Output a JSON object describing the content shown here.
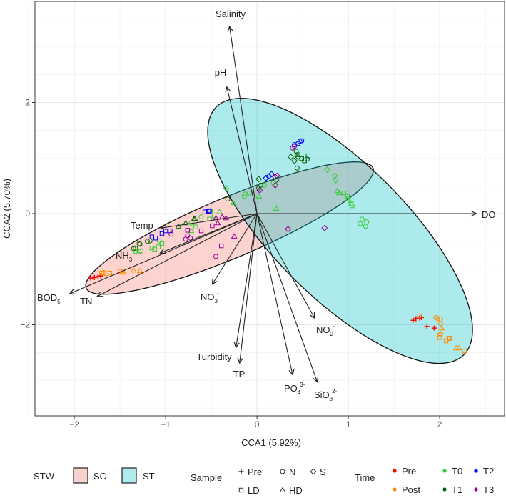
{
  "chart_data": {
    "type": "scatter",
    "title": "",
    "xlabel": "CCA1 (5.92%)",
    "ylabel": "CCA2 (5.70%)",
    "xlim": [
      -2.43,
      2.71
    ],
    "ylim": [
      -3.64,
      3.82
    ],
    "grid": true,
    "x_ticks": [
      -2,
      -1,
      0,
      1,
      2
    ],
    "y_ticks": [
      -2,
      0,
      2
    ],
    "x_tick_labels": [
      "−2",
      "−1",
      "0",
      "1",
      "2"
    ],
    "y_tick_labels": [
      "−2",
      "0",
      "2"
    ],
    "colors": {
      "Pre": "#FF0000",
      "Post": "#FF8C00",
      "T0": "#33CC33",
      "T1": "#006400",
      "T2": "#0000FF",
      "T3": "#990099"
    },
    "ellipses": [
      {
        "group": "SC",
        "fill": "#F8766D",
        "center": [
          -0.3,
          -0.26
        ],
        "axis_u": [
          1.57,
          1.08
        ],
        "axis_v": [
          -0.127,
          0.5
        ]
      },
      {
        "group": "ST",
        "fill": "#00BFC4",
        "center": [
          0.91,
          -0.31
        ],
        "axis_u": [
          -1.355,
          2.23
        ],
        "axis_v": [
          0.515,
          0.847
        ]
      }
    ],
    "arrows": [
      {
        "name": "Salinity",
        "base": "Salinity",
        "sub": "",
        "sup": "",
        "x": -0.3,
        "y": 3.37
      },
      {
        "name": "pH",
        "base": "pH",
        "sub": "",
        "sup": "",
        "x": -0.33,
        "y": 2.28
      },
      {
        "name": "DO",
        "base": "DO",
        "sub": "",
        "sup": "",
        "x": 2.4,
        "y": 0.0
      },
      {
        "name": "Temp",
        "base": "Temp",
        "sub": "",
        "sup": "",
        "x": -1.05,
        "y": -0.26
      },
      {
        "name": "NH3",
        "base": "NH",
        "sub": "3",
        "sup": "",
        "x": -1.06,
        "y": -0.71
      },
      {
        "name": "BOD5",
        "base": "BOD",
        "sub": "5",
        "sup": "",
        "x": -2.05,
        "y": -1.44
      },
      {
        "name": "TN",
        "base": "TN",
        "sub": "",
        "sup": "",
        "x": -1.75,
        "y": -1.49
      },
      {
        "name": "NO3",
        "base": "NO",
        "sub": "3",
        "sup": "-",
        "x": -0.49,
        "y": -1.27
      },
      {
        "name": "NO2",
        "base": "NO",
        "sub": "2",
        "sup": "-",
        "x": 0.63,
        "y": -1.88
      },
      {
        "name": "Turbidity",
        "base": "Turbidity",
        "sub": "",
        "sup": "",
        "x": -0.23,
        "y": -2.41
      },
      {
        "name": "TP",
        "base": "TP",
        "sub": "",
        "sup": "",
        "x": -0.19,
        "y": -2.69
      },
      {
        "name": "PO4",
        "base": "PO",
        "sub": "4",
        "sup": "3-",
        "x": 0.39,
        "y": -2.9
      },
      {
        "name": "SiO3",
        "base": "SiO",
        "sub": "3",
        "sup": "2-",
        "x": 0.66,
        "y": -3.03
      }
    ],
    "points": [
      [
        -1.7,
        -1.07,
        "Post",
        "LD"
      ],
      [
        -1.65,
        -1.08,
        "Post",
        "LD"
      ],
      [
        -1.61,
        -1.07,
        "Post",
        "LD"
      ],
      [
        -1.5,
        -1.04,
        "Post",
        "LD"
      ],
      [
        -1.47,
        -1.03,
        "Post",
        "LD"
      ],
      [
        -1.68,
        -1.06,
        "Post",
        "N"
      ],
      [
        -1.46,
        -1.06,
        "Post",
        "HD"
      ],
      [
        -1.35,
        -1.02,
        "Post",
        "HD"
      ],
      [
        -1.28,
        -1.03,
        "Post",
        "HD"
      ],
      [
        -1.82,
        -1.16,
        "Pre",
        "Pre"
      ],
      [
        -1.78,
        -1.15,
        "Pre",
        "Pre"
      ],
      [
        -1.74,
        -1.13,
        "Pre",
        "Pre"
      ],
      [
        -1.71,
        -1.12,
        "Pre",
        "Pre"
      ],
      [
        -1.29,
        -0.54,
        "T1",
        "N"
      ],
      [
        -1.33,
        -0.62,
        "T1",
        "N"
      ],
      [
        -1.35,
        -0.63,
        "T1",
        "N"
      ],
      [
        -1.2,
        -0.5,
        "T1",
        "N"
      ],
      [
        -1.17,
        -0.49,
        "T1",
        "N"
      ],
      [
        -1.28,
        -0.55,
        "T1",
        "N"
      ],
      [
        -1.33,
        -0.68,
        "T0",
        "N"
      ],
      [
        -1.29,
        -0.68,
        "T0",
        "N"
      ],
      [
        -1.27,
        -0.67,
        "T0",
        "N"
      ],
      [
        -1.15,
        -0.62,
        "T0",
        "LD"
      ],
      [
        -1.12,
        -0.64,
        "T0",
        "LD"
      ],
      [
        -1.08,
        -0.6,
        "T0",
        "LD"
      ],
      [
        -1.04,
        -0.54,
        "T0",
        "LD"
      ],
      [
        -1.07,
        -0.49,
        "T0",
        "N"
      ],
      [
        -1.15,
        -0.42,
        "T2",
        "LD"
      ],
      [
        -1.11,
        -0.44,
        "T2",
        "LD"
      ],
      [
        -1.04,
        -0.36,
        "T2",
        "LD"
      ],
      [
        -1.0,
        -0.31,
        "T2",
        "LD"
      ],
      [
        -0.95,
        -0.31,
        "T2",
        "LD"
      ],
      [
        -0.94,
        -0.37,
        "T3",
        "N"
      ],
      [
        -0.86,
        -0.23,
        "T1",
        "HD"
      ],
      [
        -0.78,
        -0.17,
        "T1",
        "HD"
      ],
      [
        -0.69,
        -0.1,
        "T1",
        "HD"
      ],
      [
        -0.68,
        -0.09,
        "T1",
        "HD"
      ],
      [
        -0.61,
        -0.06,
        "T0",
        "N"
      ],
      [
        -0.72,
        -0.17,
        "T0",
        "N"
      ],
      [
        -0.72,
        -0.31,
        "T0",
        "HD"
      ],
      [
        -0.67,
        -0.24,
        "T0",
        "LD"
      ],
      [
        -0.52,
        -0.1,
        "T0",
        "LD"
      ],
      [
        -0.47,
        -0.04,
        "T0",
        "LD"
      ],
      [
        -0.51,
        0.05,
        "T0",
        "LD"
      ],
      [
        -0.57,
        0.03,
        "T2",
        "LD"
      ],
      [
        -0.53,
        0.04,
        "T2",
        "LD"
      ],
      [
        -0.52,
        0.05,
        "T2",
        "LD"
      ],
      [
        -0.41,
        0.03,
        "T0",
        "HD"
      ],
      [
        -0.26,
        0.19,
        "T0",
        "HD"
      ],
      [
        -0.76,
        -0.3,
        "T3",
        "LD"
      ],
      [
        -0.61,
        -0.31,
        "T3",
        "LD"
      ],
      [
        -0.49,
        -0.22,
        "T3",
        "LD"
      ],
      [
        -0.39,
        -0.58,
        "T3",
        "LD"
      ],
      [
        -0.76,
        -0.4,
        "T3",
        "N"
      ],
      [
        -0.78,
        -0.46,
        "T3",
        "N"
      ],
      [
        -0.73,
        -0.44,
        "T3",
        "N"
      ],
      [
        -0.45,
        -0.77,
        "T3",
        "N"
      ],
      [
        -0.43,
        -0.17,
        "T3",
        "HD"
      ],
      [
        -0.38,
        -0.06,
        "T3",
        "HD"
      ],
      [
        -0.34,
        -0.08,
        "T3",
        "HD"
      ],
      [
        -0.25,
        -0.41,
        "T3",
        "HD"
      ],
      [
        -0.45,
        -0.08,
        "T3",
        "HD"
      ],
      [
        0.49,
        1.31,
        "T2",
        "N"
      ],
      [
        0.47,
        1.3,
        "T2",
        "N"
      ],
      [
        0.45,
        1.26,
        "T2",
        "N"
      ],
      [
        0.41,
        1.24,
        "T2",
        "N"
      ],
      [
        0.39,
        1.18,
        "T3",
        "N"
      ],
      [
        0.41,
        1.21,
        "T3",
        "N"
      ],
      [
        0.43,
        1.12,
        "T1",
        "N"
      ],
      [
        0.45,
        1.06,
        "T1",
        "LD"
      ],
      [
        0.37,
        1.02,
        "T1",
        "S"
      ],
      [
        0.41,
        0.95,
        "T1",
        "S"
      ],
      [
        0.49,
        0.99,
        "T1",
        "LD"
      ],
      [
        0.52,
        0.95,
        "T1",
        "LD"
      ],
      [
        0.56,
        1.04,
        "T1",
        "LD"
      ],
      [
        0.55,
        0.98,
        "T1",
        "N"
      ],
      [
        0.44,
        0.82,
        "T1",
        "N"
      ],
      [
        0.45,
        1.02,
        "T1",
        "S"
      ],
      [
        0.77,
        0.79,
        "T0",
        "S"
      ],
      [
        0.85,
        0.68,
        "T0",
        "S"
      ],
      [
        0.86,
        0.6,
        "T0",
        "S"
      ],
      [
        0.88,
        0.41,
        "T0",
        "HD"
      ],
      [
        0.9,
        0.37,
        "T0",
        "HD"
      ],
      [
        0.95,
        0.37,
        "T0",
        "LD"
      ],
      [
        0.99,
        0.31,
        "T0",
        "LD"
      ],
      [
        1.0,
        0.26,
        "T0",
        "LD"
      ],
      [
        1.03,
        0.23,
        "T0",
        "LD"
      ],
      [
        1.03,
        0.18,
        "T0",
        "LD"
      ],
      [
        1.04,
        0.14,
        "T0",
        "LD"
      ],
      [
        1.15,
        -0.1,
        "T0",
        "N"
      ],
      [
        1.2,
        -0.15,
        "T0",
        "N"
      ],
      [
        1.13,
        -0.18,
        "T0",
        "N"
      ],
      [
        1.19,
        -0.23,
        "T0",
        "N"
      ],
      [
        0.1,
        0.64,
        "T2",
        "S"
      ],
      [
        0.13,
        0.67,
        "T2",
        "S"
      ],
      [
        0.16,
        0.71,
        "T2",
        "S"
      ],
      [
        0.22,
        0.68,
        "T3",
        "S"
      ],
      [
        0.2,
        0.66,
        "T3",
        "S"
      ],
      [
        0.2,
        0.51,
        "T3",
        "S"
      ],
      [
        0.02,
        0.62,
        "T1",
        "S"
      ],
      [
        0.21,
        0.6,
        "T1",
        "S"
      ],
      [
        0.04,
        0.51,
        "T1",
        "N"
      ],
      [
        0.02,
        0.46,
        "T1",
        "N"
      ],
      [
        0.08,
        0.51,
        "T0",
        "N"
      ],
      [
        0.18,
        0.55,
        "T0",
        "N"
      ],
      [
        -0.08,
        0.37,
        "T0",
        "N"
      ],
      [
        -0.13,
        0.35,
        "T0",
        "N"
      ],
      [
        -0.14,
        0.31,
        "T0",
        "N"
      ],
      [
        0.03,
        0.42,
        "T3",
        "S"
      ],
      [
        0.02,
        0.31,
        "T0",
        "HD"
      ],
      [
        0.21,
        0.09,
        "T0",
        "HD"
      ],
      [
        -0.34,
        0.46,
        "T0",
        "S"
      ],
      [
        -0.32,
        0.26,
        "T1",
        "N"
      ],
      [
        0.34,
        -0.28,
        "T3",
        "S"
      ],
      [
        0.74,
        -0.26,
        "T3",
        "S"
      ],
      [
        1.71,
        -1.92,
        "Pre",
        "Pre"
      ],
      [
        1.74,
        -1.89,
        "Pre",
        "Pre"
      ],
      [
        1.78,
        -1.88,
        "Pre",
        "Pre"
      ],
      [
        1.8,
        -1.87,
        "Pre",
        "Pre"
      ],
      [
        1.86,
        -2.03,
        "Pre",
        "Pre"
      ],
      [
        1.94,
        -2.06,
        "Pre",
        "Pre"
      ],
      [
        1.78,
        -1.84,
        "Post",
        "N"
      ],
      [
        1.96,
        -1.87,
        "Post",
        "N"
      ],
      [
        1.98,
        -1.89,
        "Post",
        "N"
      ],
      [
        2.01,
        -1.9,
        "Post",
        "N"
      ],
      [
        2.01,
        -1.98,
        "Post",
        "N"
      ],
      [
        2.01,
        -2.16,
        "Post",
        "N"
      ],
      [
        2.0,
        -2.18,
        "Post",
        "N"
      ],
      [
        2.02,
        -2.06,
        "Post",
        "HD"
      ],
      [
        2.0,
        -2.23,
        "Post",
        "LD"
      ],
      [
        2.07,
        -2.29,
        "Post",
        "LD"
      ],
      [
        2.1,
        -2.25,
        "Post",
        "LD"
      ],
      [
        2.11,
        -2.24,
        "Post",
        "LD"
      ],
      [
        2.27,
        -2.47,
        "Post",
        "LD"
      ],
      [
        2.18,
        -2.42,
        "Post",
        "HD"
      ],
      [
        2.21,
        -2.42,
        "Post",
        "HD"
      ]
    ]
  },
  "legend": {
    "stw": {
      "title": "STW",
      "items": [
        {
          "label": "SC",
          "color": "#F8D2CF"
        },
        {
          "label": "ST",
          "color": "#B2EBEB"
        }
      ]
    },
    "sample": {
      "title": "Sample",
      "items": [
        {
          "label": "Pre",
          "shape": "Pre"
        },
        {
          "label": "N",
          "shape": "N"
        },
        {
          "label": "S",
          "shape": "S"
        },
        {
          "label": "LD",
          "shape": "LD"
        },
        {
          "label": "HD",
          "shape": "HD"
        }
      ]
    },
    "time": {
      "title": "Time",
      "items": [
        {
          "label": "Pre"
        },
        {
          "label": "T0"
        },
        {
          "label": "T2"
        },
        {
          "label": "Post"
        },
        {
          "label": "T1"
        },
        {
          "label": "T3"
        }
      ]
    }
  }
}
